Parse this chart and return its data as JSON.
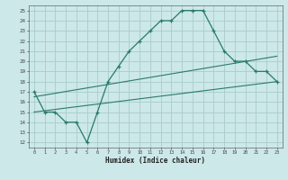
{
  "xlabel": "Humidex (Indice chaleur)",
  "bg_color": "#cce8e8",
  "grid_color": "#aacccc",
  "line_color": "#2a7a6a",
  "xlim": [
    -0.5,
    23.5
  ],
  "ylim": [
    11.5,
    25.5
  ],
  "xticks": [
    0,
    1,
    2,
    3,
    4,
    5,
    6,
    7,
    8,
    9,
    10,
    11,
    12,
    13,
    14,
    15,
    16,
    17,
    18,
    19,
    20,
    21,
    22,
    23
  ],
  "yticks": [
    12,
    13,
    14,
    15,
    16,
    17,
    18,
    19,
    20,
    21,
    22,
    23,
    24,
    25
  ],
  "curve1_x": [
    0,
    1,
    2,
    3,
    4,
    5,
    6,
    7,
    8,
    9,
    10,
    11,
    12,
    13,
    14,
    15,
    16,
    17,
    18,
    19,
    20,
    21,
    22,
    23
  ],
  "curve1_y": [
    17,
    15,
    15,
    14,
    14,
    12,
    15,
    18,
    19.5,
    21,
    22,
    23,
    24,
    24,
    25,
    25,
    25,
    23,
    21,
    20,
    20,
    19,
    19,
    18
  ],
  "line2_x": [
    0,
    23
  ],
  "line2_y": [
    16.5,
    20.5
  ],
  "line3_x": [
    0,
    23
  ],
  "line3_y": [
    15.0,
    18.0
  ]
}
